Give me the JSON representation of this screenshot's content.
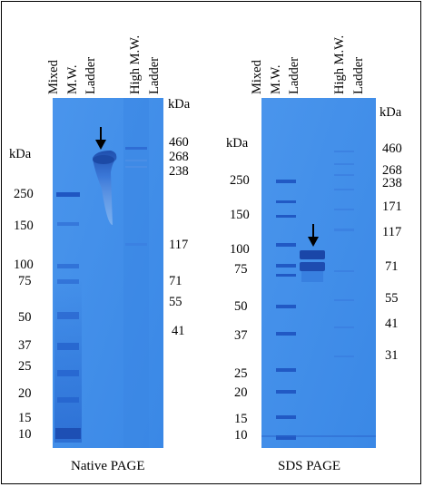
{
  "panels": [
    {
      "caption": "Native PAGE",
      "lane_headers": [
        "Mixed",
        "M.W.",
        "Ladder",
        "High M.W.",
        "Ladder"
      ],
      "left_unit": "kDa",
      "left_markers": [
        "250",
        "150",
        "100",
        "75",
        "50",
        "37",
        "25",
        "20",
        "15",
        "10"
      ],
      "right_unit": "kDa",
      "right_markers": [
        "460",
        "268",
        "238",
        "117",
        "71",
        "55",
        "41"
      ],
      "arrow": "down-arrow"
    },
    {
      "caption": "SDS PAGE",
      "lane_headers": [
        "Mixed",
        "M.W.",
        "Ladder",
        "High M.W.",
        "Ladder"
      ],
      "left_unit": "kDa",
      "left_markers": [
        "250",
        "150",
        "100",
        "75",
        "50",
        "37",
        "25",
        "20",
        "15",
        "10"
      ],
      "right_unit": "kDa",
      "right_markers": [
        "460",
        "268",
        "238",
        "171",
        "117",
        "71",
        "55",
        "41",
        "31"
      ],
      "arrow": "down-arrow"
    }
  ],
  "colors": {
    "gel": "#3d8ce8",
    "band": "#1f52b5",
    "background": "#ffffff"
  }
}
